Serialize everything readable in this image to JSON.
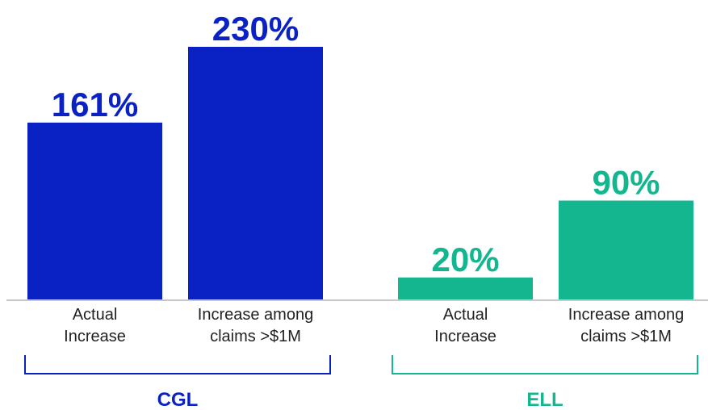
{
  "chart_data": {
    "type": "bar",
    "groups": [
      {
        "name": "CGL",
        "color": "#0a22c4",
        "bars": [
          {
            "category_lines": [
              "Actual",
              "Increase"
            ],
            "value": 161,
            "label": "161%"
          },
          {
            "category_lines": [
              "Increase among",
              "claims >$1M"
            ],
            "value": 230,
            "label": "230%"
          }
        ]
      },
      {
        "name": "ELL",
        "color": "#14b68f",
        "bars": [
          {
            "category_lines": [
              "Actual",
              "Increase"
            ],
            "value": 20,
            "label": "20%"
          },
          {
            "category_lines": [
              "Increase among",
              "claims >$1M"
            ],
            "value": 90,
            "label": "90%"
          }
        ]
      }
    ],
    "axis_color": "#c8c8c8",
    "ylim": [
      0,
      230
    ],
    "unit": "%"
  }
}
